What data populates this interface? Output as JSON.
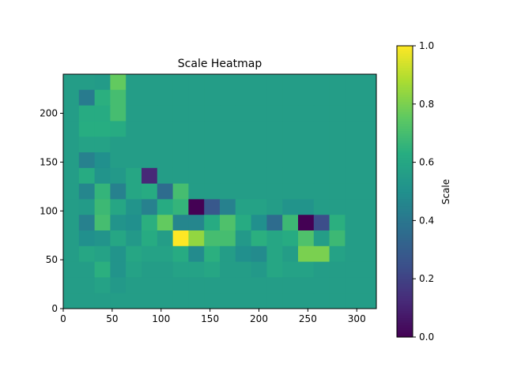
{
  "chart_data": {
    "type": "heatmap",
    "title": "Scale Heatmap",
    "colorbar_label": "Scale",
    "colormap": "viridis",
    "x_range": [
      0,
      320
    ],
    "y_range": [
      0,
      240
    ],
    "cell_size": 16,
    "x_ticks": [
      "0",
      "50",
      "100",
      "150",
      "200",
      "250",
      "300"
    ],
    "y_ticks": [
      "0",
      "50",
      "100",
      "150",
      "200"
    ],
    "colorbar_ticks": [
      "0.0",
      "0.2",
      "0.4",
      "0.6",
      "0.8",
      "1.0"
    ],
    "value_range": [
      0,
      1
    ],
    "default_value": 0.56,
    "rows_from_top": [
      [
        0.56,
        0.56,
        0.55,
        0.76,
        0.56,
        0.56,
        0.56,
        0.56,
        0.56,
        0.56,
        0.56,
        0.56,
        0.56,
        0.56,
        0.56,
        0.56,
        0.56,
        0.56,
        0.56,
        0.56
      ],
      [
        0.56,
        0.42,
        0.64,
        0.7,
        0.56,
        0.56,
        0.56,
        0.56,
        0.56,
        0.56,
        0.56,
        0.56,
        0.56,
        0.56,
        0.56,
        0.56,
        0.56,
        0.56,
        0.56,
        0.56
      ],
      [
        0.56,
        0.62,
        0.62,
        0.7,
        0.56,
        0.56,
        0.56,
        0.56,
        0.56,
        0.56,
        0.56,
        0.56,
        0.56,
        0.56,
        0.56,
        0.56,
        0.56,
        0.56,
        0.56,
        0.56
      ],
      [
        0.56,
        0.63,
        0.63,
        0.62,
        0.56,
        0.56,
        0.56,
        0.56,
        0.56,
        0.56,
        0.56,
        0.56,
        0.56,
        0.56,
        0.56,
        0.56,
        0.56,
        0.56,
        0.56,
        0.56
      ],
      [
        0.56,
        0.58,
        0.58,
        0.56,
        0.56,
        0.56,
        0.56,
        0.56,
        0.56,
        0.56,
        0.56,
        0.56,
        0.56,
        0.56,
        0.56,
        0.56,
        0.56,
        0.56,
        0.56,
        0.56
      ],
      [
        0.56,
        0.44,
        0.5,
        0.56,
        0.56,
        0.56,
        0.56,
        0.56,
        0.56,
        0.56,
        0.56,
        0.56,
        0.56,
        0.56,
        0.56,
        0.56,
        0.56,
        0.56,
        0.56,
        0.56
      ],
      [
        0.56,
        0.62,
        0.52,
        0.54,
        0.6,
        0.12,
        0.56,
        0.56,
        0.56,
        0.56,
        0.56,
        0.56,
        0.56,
        0.56,
        0.56,
        0.56,
        0.56,
        0.56,
        0.56,
        0.56
      ],
      [
        0.56,
        0.46,
        0.66,
        0.44,
        0.6,
        0.62,
        0.36,
        0.7,
        0.56,
        0.56,
        0.56,
        0.56,
        0.56,
        0.56,
        0.56,
        0.56,
        0.56,
        0.56,
        0.56,
        0.56
      ],
      [
        0.56,
        0.55,
        0.68,
        0.6,
        0.52,
        0.44,
        0.62,
        0.66,
        0.0,
        0.28,
        0.44,
        0.58,
        0.58,
        0.56,
        0.52,
        0.52,
        0.56,
        0.56,
        0.56,
        0.56
      ],
      [
        0.56,
        0.44,
        0.7,
        0.52,
        0.5,
        0.64,
        0.76,
        0.46,
        0.46,
        0.62,
        0.72,
        0.62,
        0.5,
        0.36,
        0.68,
        0.0,
        0.24,
        0.64,
        0.56,
        0.56
      ],
      [
        0.56,
        0.5,
        0.52,
        0.6,
        0.54,
        0.62,
        0.56,
        1.0,
        0.84,
        0.7,
        0.7,
        0.54,
        0.64,
        0.6,
        0.62,
        0.72,
        0.56,
        0.68,
        0.56,
        0.56
      ],
      [
        0.56,
        0.6,
        0.58,
        0.52,
        0.6,
        0.58,
        0.58,
        0.62,
        0.48,
        0.64,
        0.56,
        0.5,
        0.48,
        0.6,
        0.56,
        0.8,
        0.8,
        0.58,
        0.56,
        0.56
      ],
      [
        0.56,
        0.56,
        0.64,
        0.52,
        0.58,
        0.56,
        0.56,
        0.58,
        0.58,
        0.6,
        0.56,
        0.56,
        0.54,
        0.6,
        0.58,
        0.58,
        0.56,
        0.56,
        0.56,
        0.56
      ],
      [
        0.56,
        0.56,
        0.58,
        0.54,
        0.56,
        0.56,
        0.56,
        0.56,
        0.56,
        0.56,
        0.56,
        0.56,
        0.56,
        0.56,
        0.56,
        0.56,
        0.56,
        0.56,
        0.56,
        0.56
      ],
      [
        0.56,
        0.56,
        0.56,
        0.56,
        0.56,
        0.56,
        0.56,
        0.56,
        0.56,
        0.56,
        0.56,
        0.56,
        0.56,
        0.56,
        0.56,
        0.56,
        0.56,
        0.56,
        0.56,
        0.56
      ]
    ]
  }
}
